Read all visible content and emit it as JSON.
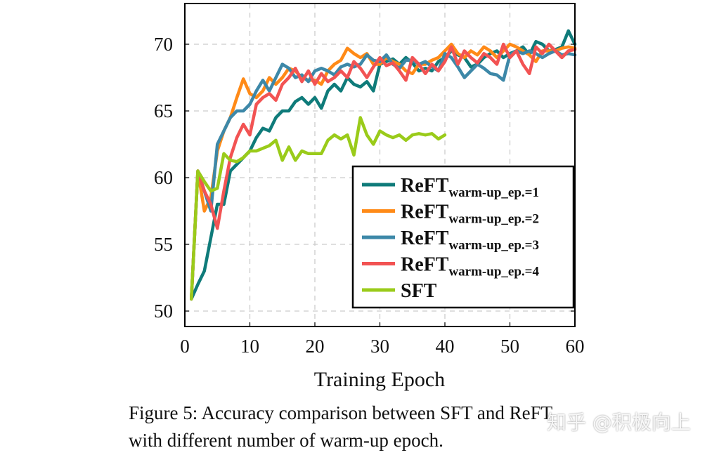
{
  "chart_data": {
    "type": "line",
    "xlabel": "Training Epoch",
    "ylabel": "",
    "xlim": [
      0,
      60
    ],
    "ylim": [
      49.3,
      73
    ],
    "xticks": [
      0,
      10,
      20,
      30,
      40,
      50,
      60
    ],
    "yticks": [
      50,
      55,
      60,
      65,
      70
    ],
    "grid": true,
    "legend_position": "lower-right",
    "series": [
      {
        "name": "ReFT",
        "name_sub": "warm-up_ep.=1",
        "color": "#0f7b7a",
        "x_start": 1,
        "values": [
          50.9,
          52,
          53,
          55.5,
          58,
          58,
          60.5,
          61,
          61.5,
          62,
          63,
          63.7,
          63.5,
          64.5,
          65,
          65,
          65.7,
          66,
          65.5,
          66,
          65.2,
          66.5,
          67,
          66.5,
          67.5,
          67,
          66.8,
          67.2,
          66.5,
          68.5,
          68.7,
          68.9,
          68.5,
          69,
          68.6,
          68,
          68.2,
          68,
          68.7,
          69,
          69.5,
          69.2,
          69,
          68.3,
          68.5,
          69,
          69.3,
          69.5,
          69,
          69.3,
          69.5,
          69.8,
          69.2,
          70.2,
          70,
          69.5,
          69.6,
          69.8,
          71,
          70
        ]
      },
      {
        "name": "ReFT",
        "name_sub": "warm-up_ep.=2",
        "color": "#ff8a17",
        "x_start": 1,
        "values": [
          50.9,
          60.5,
          57.5,
          58.5,
          62,
          63.5,
          64.5,
          66,
          67.4,
          66.3,
          66,
          66.5,
          67.5,
          67,
          67.5,
          68.2,
          68,
          67.5,
          67.3,
          67.3,
          67,
          68,
          68.5,
          68.8,
          69.7,
          69.3,
          69,
          69.3,
          68.5,
          68.5,
          69,
          68.7,
          68.5,
          68,
          67.8,
          68.5,
          68.5,
          68.8,
          69,
          69.5,
          70,
          69.3,
          69,
          69.5,
          69.2,
          69.8,
          69.5,
          69,
          69.5,
          70,
          69.8,
          69.5,
          69.2,
          68.7,
          69.5,
          69.5,
          69.5,
          69.7,
          69.8,
          69.7
        ]
      },
      {
        "name": "ReFT",
        "name_sub": "warm-up_ep.=3",
        "color": "#3d88a8",
        "x_start": 1,
        "values": [
          50.9,
          60.5,
          59,
          57.5,
          62.5,
          63.5,
          64.5,
          65,
          65,
          65.5,
          66.5,
          67.3,
          66.5,
          67.5,
          68.5,
          68.2,
          67.5,
          67.7,
          67.2,
          68,
          68.2,
          68,
          67.7,
          68.3,
          68.5,
          68.3,
          68.5,
          69.2,
          68.8,
          68.7,
          69.2,
          68.5,
          68.2,
          68.8,
          68.8,
          68.5,
          68.7,
          68.3,
          68,
          69.3,
          69,
          68.3,
          67.5,
          68,
          68.5,
          68.2,
          67.8,
          67.7,
          67.3,
          69.2,
          69.5,
          69.3,
          69.5,
          69.3,
          69,
          69.3,
          69.5,
          69.2,
          69.3,
          69.2
        ]
      },
      {
        "name": "ReFT",
        "name_sub": "warm-up_ep.=4",
        "color": "#f25353",
        "x_start": 1,
        "values": [
          50.9,
          60.5,
          59,
          58,
          56.2,
          59,
          61.5,
          63,
          64,
          63.2,
          65.5,
          66,
          66.3,
          65.8,
          67,
          67.5,
          68.2,
          67.2,
          68,
          67,
          67.8,
          67.2,
          67.5,
          68,
          67.5,
          68.7,
          68.2,
          67.5,
          68.3,
          69,
          68.4,
          68.6,
          68,
          67.3,
          69,
          68.5,
          67.8,
          68.5,
          68,
          68.7,
          69.8,
          68.5,
          69.5,
          69,
          68.6,
          69.3,
          69,
          68.5,
          70,
          69,
          69.5,
          68.5,
          67.8,
          69.8,
          69.3,
          70,
          69.5,
          69,
          69.5,
          69.6
        ]
      },
      {
        "name": "SFT",
        "name_sub": "",
        "color": "#9acb1a",
        "x_start": 1,
        "values": [
          50.9,
          60.5,
          59.7,
          59,
          59.2,
          61.8,
          61.3,
          61.2,
          61.5,
          62,
          62,
          62.2,
          62.4,
          62.8,
          61.3,
          62.3,
          61.3,
          62,
          61.8,
          61.8,
          61.8,
          62.8,
          63.2,
          62.9,
          63.2,
          61.7,
          64.5,
          63.2,
          62.5,
          63.5,
          63.2,
          63,
          63.2,
          62.8,
          63.2,
          63.3,
          63.2,
          63.3,
          62.9,
          63.2
        ]
      }
    ]
  },
  "caption": {
    "line1": "Figure 5: Accuracy comparison between SFT and ReFT",
    "line2": "with different number of warm-up epoch."
  },
  "watermark": "知乎 @积极向上"
}
